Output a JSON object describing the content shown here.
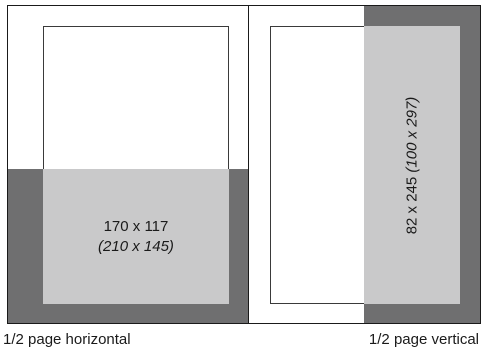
{
  "horizontal": {
    "caption": "1/2 page horizontal",
    "size": "170 x 117",
    "bleed_size": "(210 x 145)"
  },
  "vertical": {
    "caption": "1/2 page vertical",
    "size": "82 x 245",
    "bleed_size": "(100 x 297)"
  },
  "colors": {
    "bleed": "#6f6f70",
    "ad_area": "#c9c9ca",
    "outline": "#1a1a1a"
  }
}
